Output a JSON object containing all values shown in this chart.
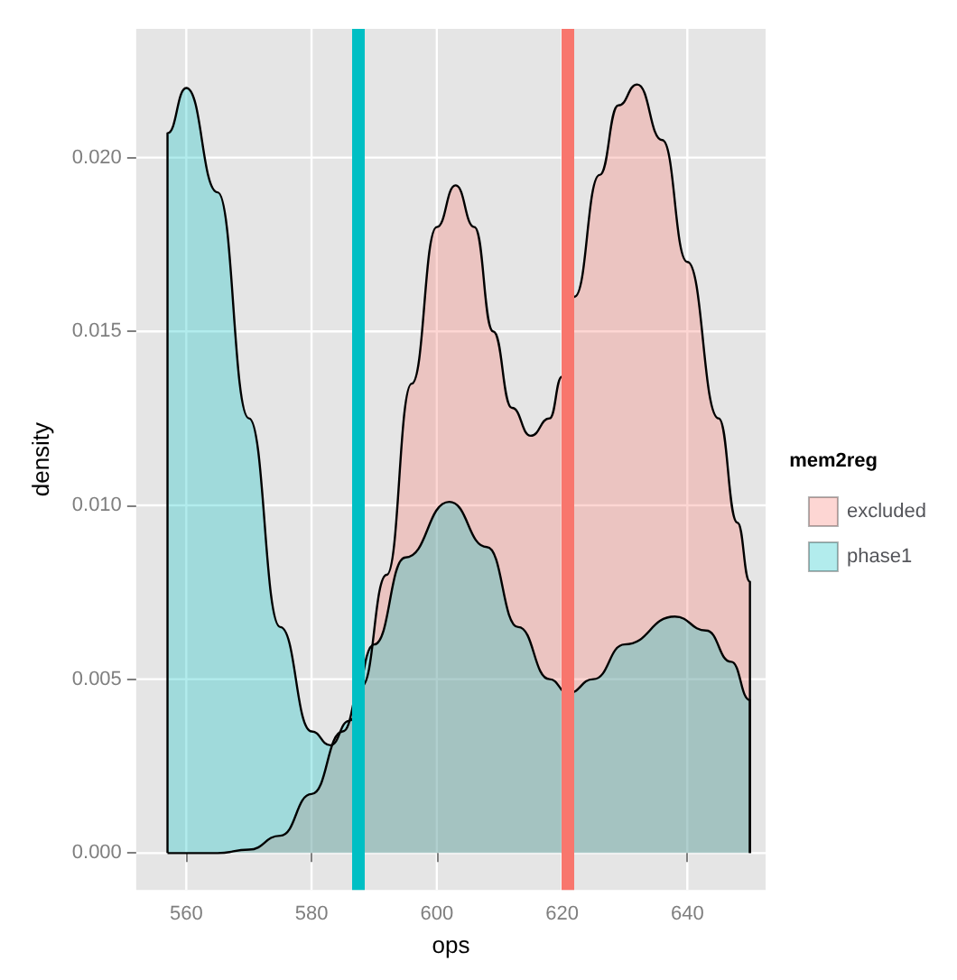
{
  "chart_data": {
    "type": "area",
    "xlabel": "ops",
    "ylabel": "density",
    "legend_title": "mem2reg",
    "legend": "right",
    "grid": true,
    "line_style": "solid",
    "marker": "none",
    "xlim": [
      552,
      652.5
    ],
    "xticks": [
      560,
      580,
      600,
      620,
      640
    ],
    "ylim": [
      -0.00106,
      0.0237
    ],
    "yticks": [
      {
        "value": 0,
        "label": "0.000"
      },
      {
        "value": 0.005,
        "label": "0.005"
      },
      {
        "value": 0.01,
        "label": "0.010"
      },
      {
        "value": 0.015,
        "label": "0.015"
      },
      {
        "value": 0.02,
        "label": "0.020"
      }
    ],
    "series": [
      {
        "name": "excluded",
        "color": "#f8766d",
        "x": [
          557,
          565,
          570,
          575,
          580,
          585,
          588,
          592,
          596,
          600,
          603,
          606,
          609,
          612,
          615,
          618,
          620,
          622,
          626,
          629,
          632,
          636,
          640,
          645,
          648,
          650,
          650
        ],
        "values": [
          0,
          0,
          0.0001,
          0.0005,
          0.0017,
          0.0035,
          0.0048,
          0.008,
          0.0135,
          0.018,
          0.0192,
          0.018,
          0.015,
          0.0128,
          0.012,
          0.0125,
          0.0137,
          0.016,
          0.0195,
          0.0215,
          0.0221,
          0.0205,
          0.017,
          0.0125,
          0.0095,
          0.0078,
          0
        ]
      },
      {
        "name": "phase1",
        "color": "#00bfc4",
        "x": [
          557,
          557,
          560,
          565,
          570,
          575,
          580,
          583,
          586,
          590,
          595,
          602,
          608,
          613,
          618,
          621,
          625,
          630,
          638,
          643,
          647,
          650,
          650
        ],
        "values": [
          0,
          0.0207,
          0.022,
          0.019,
          0.0125,
          0.0065,
          0.0035,
          0.0031,
          0.0038,
          0.006,
          0.0085,
          0.0101,
          0.0088,
          0.0065,
          0.005,
          0.0046,
          0.005,
          0.006,
          0.0068,
          0.0064,
          0.0055,
          0.0044,
          0
        ]
      }
    ],
    "ref_lines": [
      {
        "axis": "x",
        "value": 587.3,
        "label": null,
        "color": "#00bfc4"
      },
      {
        "axis": "x",
        "value": 620.9,
        "label": null,
        "color": "#f8766d"
      }
    ]
  }
}
